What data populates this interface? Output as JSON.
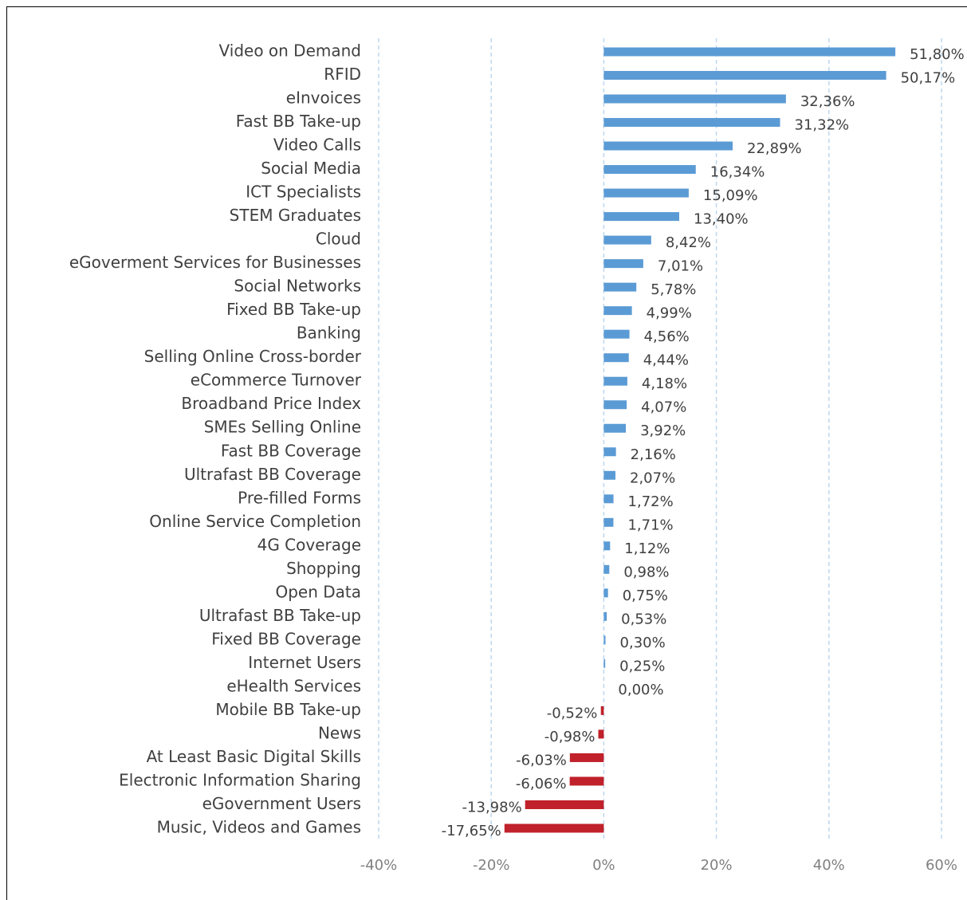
{
  "chart_data": {
    "type": "barh",
    "categories": [
      "Video on Demand",
      "RFID",
      "eInvoices",
      "Fast BB Take-up",
      "Video Calls",
      "Social Media",
      "ICT Specialists",
      "STEM Graduates",
      "Cloud",
      "eGoverment Services for Businesses",
      "Social Networks",
      "Fixed BB Take-up",
      "Banking",
      "Selling Online Cross-border",
      "eCommerce Turnover",
      "Broadband Price Index",
      "SMEs Selling Online",
      "Fast BB Coverage",
      "Ultrafast BB Coverage",
      "Pre-filled Forms",
      "Online Service Completion",
      "4G Coverage",
      "Shopping",
      "Open Data",
      "Ultrafast BB Take-up",
      "Fixed BB Coverage",
      "Internet Users",
      "eHealth Services",
      "Mobile BB Take-up",
      "News",
      "At Least Basic Digital Skills",
      "Electronic Information Sharing",
      "eGovernment Users",
      "Music, Videos and Games"
    ],
    "values": [
      51.8,
      50.17,
      32.36,
      31.32,
      22.89,
      16.34,
      15.09,
      13.4,
      8.42,
      7.01,
      5.78,
      4.99,
      4.56,
      4.44,
      4.18,
      4.07,
      3.92,
      2.16,
      2.07,
      1.72,
      1.71,
      1.12,
      0.98,
      0.75,
      0.53,
      0.3,
      0.25,
      0.0,
      -0.52,
      -0.98,
      -6.03,
      -6.06,
      -13.98,
      -17.65
    ],
    "value_labels": [
      "51,80%",
      "50,17%",
      "32,36%",
      "31,32%",
      "22,89%",
      "16,34%",
      "15,09%",
      "13,40%",
      "8,42%",
      "7,01%",
      "5,78%",
      "4,99%",
      "4,56%",
      "4,44%",
      "4,18%",
      "4,07%",
      "3,92%",
      "2,16%",
      "2,07%",
      "1,72%",
      "1,71%",
      "1,12%",
      "0,98%",
      "0,75%",
      "0,53%",
      "0,30%",
      "0,25%",
      "0,00%",
      "-0,52%",
      "-0,98%",
      "-6,03%",
      "-6,06%",
      "-13,98%",
      "-17,65%"
    ],
    "color": "#5b9bd5",
    "negative_color": "#c0212a",
    "xlim": [
      -40,
      60
    ],
    "xticks": [
      {
        "value": -40,
        "label": "-40%"
      },
      {
        "value": -20,
        "label": "-20%"
      },
      {
        "value": 0,
        "label": "0%"
      },
      {
        "value": 20,
        "label": "20%"
      },
      {
        "value": 40,
        "label": "40%"
      },
      {
        "value": 60,
        "label": "60%"
      }
    ],
    "grid": true
  }
}
